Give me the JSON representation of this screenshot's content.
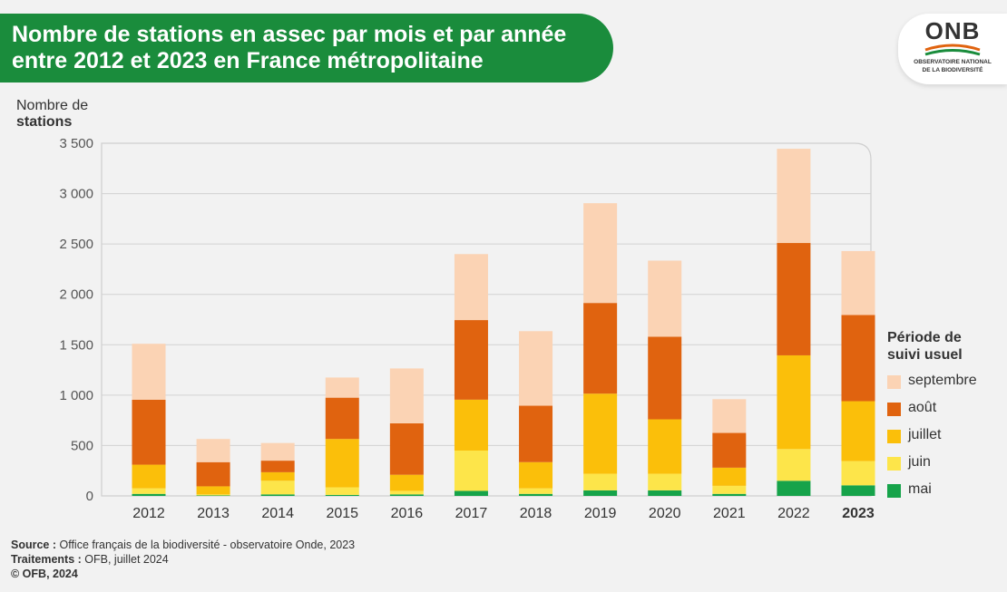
{
  "header": {
    "title_line1": "Nombre de stations en assec par mois et par année",
    "title_line2": "entre 2012 et 2023 en France métropolitaine"
  },
  "logo": {
    "wordmark": "ONB",
    "line1": "OBSERVATOIRE NATIONAL",
    "line2": "DE LA BIODIVERSITÉ"
  },
  "colors": {
    "banner": "#1a8c3c",
    "mai": "#16a34a",
    "juin": "#fde54a",
    "juillet": "#fbbf0a",
    "aout": "#e0630f",
    "septembre": "#fbd3b4"
  },
  "chart_data": {
    "type": "bar",
    "stacked": true,
    "ylabel_line1": "Nombre de",
    "ylabel_line2": "stations",
    "ylim": [
      0,
      3500
    ],
    "yticks": [
      0,
      500,
      1000,
      1500,
      2000,
      2500,
      3000,
      3500
    ],
    "ytick_labels": [
      "0",
      "500",
      "1 000",
      "1 500",
      "2 000",
      "2 500",
      "3 000",
      "3 500"
    ],
    "grid": true,
    "categories": [
      "2012",
      "2013",
      "2014",
      "2015",
      "2016",
      "2017",
      "2018",
      "2019",
      "2020",
      "2021",
      "2022",
      "2023"
    ],
    "highlighted_category": "2023",
    "series": [
      {
        "name": "mai",
        "values": [
          20,
          5,
          15,
          10,
          15,
          50,
          20,
          55,
          55,
          20,
          150,
          105
        ]
      },
      {
        "name": "juin",
        "values": [
          55,
          10,
          135,
          75,
          35,
          400,
          55,
          165,
          165,
          80,
          315,
          240
        ]
      },
      {
        "name": "juillet",
        "values": [
          235,
          80,
          85,
          480,
          160,
          505,
          260,
          795,
          540,
          180,
          930,
          595
        ]
      },
      {
        "name": "août",
        "values": [
          645,
          240,
          115,
          410,
          510,
          790,
          560,
          900,
          820,
          345,
          1115,
          855
        ]
      },
      {
        "name": "septembre",
        "values": [
          555,
          230,
          175,
          200,
          545,
          655,
          740,
          990,
          755,
          335,
          935,
          635
        ]
      }
    ],
    "legend": {
      "title_line1": "Période de",
      "title_line2": "suivi usuel",
      "position": "right",
      "order": [
        "septembre",
        "août",
        "juillet",
        "juin",
        "mai"
      ]
    }
  },
  "footer": {
    "source_label": "Source :",
    "source_text": " Office français de la biodiversité - observatoire Onde, 2023",
    "traitements_label": "Traitements :",
    "traitements_text": " OFB, juillet 2024",
    "copyright": "© OFB, 2024"
  }
}
